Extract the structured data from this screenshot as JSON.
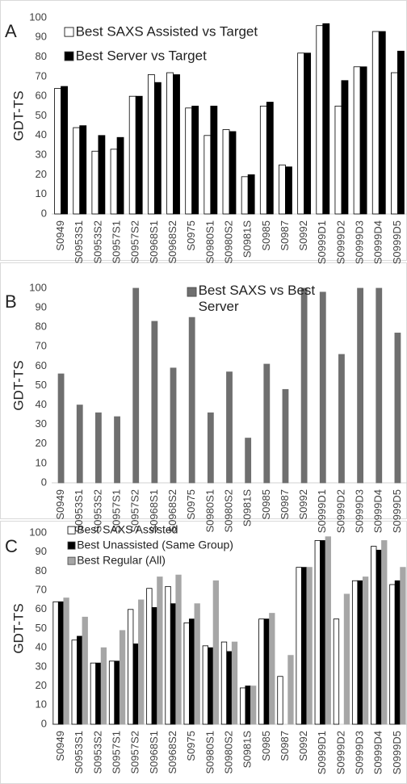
{
  "chart_data": [
    {
      "type": "bar",
      "panel_label": "A",
      "ylabel": "GDT-TS",
      "categories": [
        "S0949",
        "S0953S1",
        "S0953S2",
        "S0957S1",
        "S0957S2",
        "S0968S1",
        "S0968S2",
        "S0975",
        "S0980S1",
        "S0980S2",
        "S0981S",
        "S0985",
        "S0987",
        "S0992",
        "S0999D1",
        "S0999D2",
        "S0999D3",
        "S0999D4",
        "S0999D5"
      ],
      "series": [
        {
          "name": "Best SAXS Assisted vs Target",
          "color": "#ffffff",
          "values": [
            64,
            44,
            32,
            33,
            60,
            71,
            72,
            54,
            40,
            43,
            19,
            55,
            25,
            82,
            96,
            55,
            75,
            93,
            72
          ]
        },
        {
          "name": "Best Server vs Target",
          "color": "#000000",
          "values": [
            65,
            45,
            40,
            39,
            60,
            67,
            71,
            55,
            55,
            42,
            20,
            57,
            24,
            82,
            97,
            68,
            75,
            93,
            83
          ]
        }
      ],
      "ylim": [
        0,
        100
      ],
      "yticks": [
        0,
        10,
        20,
        30,
        40,
        50,
        60,
        70,
        80,
        90,
        100
      ]
    },
    {
      "type": "bar",
      "panel_label": "B",
      "ylabel": "GDT-TS",
      "categories": [
        "S0949",
        "S0953S1",
        "S0953S2",
        "S0957S1",
        "S0957S2",
        "S0968S1",
        "S0968S2",
        "S0975",
        "S0980S1",
        "S0980S2",
        "S0981S",
        "S0985",
        "S0987",
        "S0992",
        "S0999D1",
        "S0999D2",
        "S0999D3",
        "S0999D4",
        "S0999D5"
      ],
      "series": [
        {
          "name": "Best SAXS vs Best Server",
          "color": "#6f6f6f",
          "values": [
            56,
            40,
            36,
            34,
            100,
            83,
            59,
            85,
            36,
            57,
            23,
            61,
            48,
            100,
            98,
            66,
            100,
            100,
            77
          ]
        }
      ],
      "ylim": [
        0,
        100
      ],
      "yticks": [
        0,
        10,
        20,
        30,
        40,
        50,
        60,
        70,
        80,
        90,
        100
      ]
    },
    {
      "type": "bar",
      "panel_label": "C",
      "ylabel": "GDT-TS",
      "categories": [
        "S0949",
        "S0953S1",
        "S0953S2",
        "S0957S1",
        "S0957S2",
        "S0968S1",
        "S0968S2",
        "S0975",
        "S0980S1",
        "S0980S2",
        "S0981S",
        "S0985",
        "S0987",
        "S0992",
        "S0999D1",
        "S0999D2",
        "S0999D3",
        "S0999D4",
        "S0999D5"
      ],
      "series": [
        {
          "name": "Best SAXS Assisted",
          "color": "#ffffff",
          "values": [
            64,
            44,
            32,
            33,
            60,
            71,
            72,
            53,
            41,
            43,
            19,
            55,
            25,
            82,
            96,
            55,
            75,
            93,
            73
          ]
        },
        {
          "name": "Best Unassisted (Same Group)",
          "color": "#000000",
          "values": [
            64,
            46,
            32,
            33,
            42,
            61,
            63,
            55,
            40,
            38,
            20,
            55,
            null,
            82,
            96,
            null,
            75,
            91,
            75
          ]
        },
        {
          "name": "Best Regular (All)",
          "color": "#a6a6a6",
          "values": [
            66,
            56,
            40,
            49,
            65,
            77,
            78,
            63,
            75,
            43,
            20,
            58,
            36,
            82,
            98,
            68,
            77,
            96,
            82
          ]
        }
      ],
      "ylim": [
        0,
        100
      ],
      "yticks": [
        0,
        10,
        20,
        30,
        40,
        50,
        60,
        70,
        80,
        90,
        100
      ]
    }
  ]
}
